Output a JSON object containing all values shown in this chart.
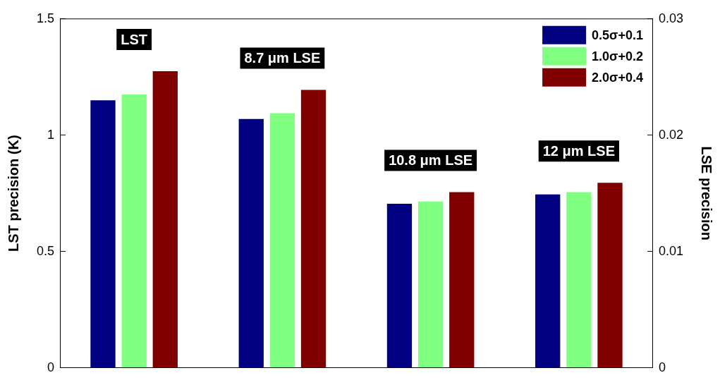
{
  "chart_data": {
    "type": "bar",
    "categories": [
      null,
      null,
      null,
      null
    ],
    "series": [
      {
        "name": "0.5σ+0.1",
        "color": "#000080",
        "values": [
          1.15,
          null,
          null,
          null
        ]
      },
      {
        "name": "1.0σ+0.2",
        "color": "#80ff80",
        "values": [
          1.175,
          null,
          null,
          null
        ]
      },
      {
        "name": "2.0σ+0.4",
        "color": "#800000",
        "values": [
          1.275,
          null,
          null,
          null
        ]
      },
      {
        "color": "#000080",
        "axis": "y2",
        "values": [
          null,
          0.0214,
          0.0141,
          0.0149
        ]
      },
      {
        "color": "#80ff80",
        "axis": "y2",
        "values": [
          null,
          0.0219,
          0.0143,
          0.0151
        ]
      },
      {
        "color": "#800000",
        "axis": "y2",
        "values": [
          null,
          0.0239,
          0.0151,
          0.0159
        ]
      }
    ],
    "ylabel": "LST precision (K)",
    "y2label": "LSE precision",
    "ylim": [
      0,
      1.5
    ],
    "yticks": [
      0,
      0.5,
      1,
      1.5
    ],
    "y2lim": [
      0,
      0.03
    ],
    "y2ticks": [
      0,
      0.01,
      0.02,
      0.03
    ],
    "annotations": [
      "LST",
      "8.7 μm LSE",
      "10.8 μm LSE",
      "12 μm LSE"
    ],
    "legend": "top right",
    "grid": false
  }
}
